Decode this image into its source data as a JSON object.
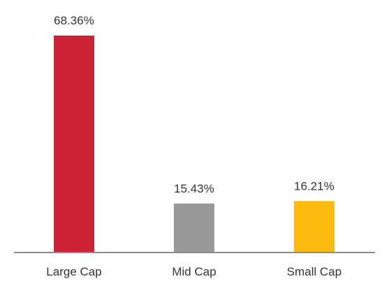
{
  "chart_data": {
    "type": "bar",
    "title": "",
    "xlabel": "",
    "ylabel": "",
    "ylim": [
      0,
      68.36
    ],
    "grid": false,
    "legend": "none",
    "categories": [
      "Large Cap",
      "Mid Cap",
      "Small Cap"
    ],
    "values": [
      68.36,
      15.43,
      16.21
    ],
    "value_labels": [
      "68.36%",
      "15.43%",
      "16.21%"
    ],
    "colors": [
      "#cc2233",
      "#999999",
      "#fbbc0e"
    ],
    "axis_color": "#8a8a8a"
  }
}
